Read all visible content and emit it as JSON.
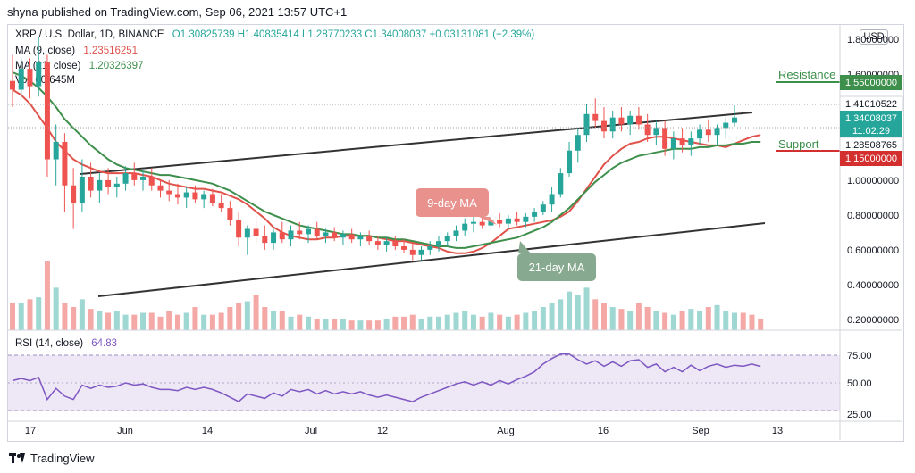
{
  "header": {
    "published": "shyna published on TradingView.com, Sep 06, 2021 13:57 UTC+1"
  },
  "legend": {
    "symbol": "XRP / U.S. Dollar, 1D, BINANCE",
    "ohlc": "O1.30825739  H1.40835414  L1.28770233  C1.34008037  +0.03131081 (+2.39%)",
    "ma9_label": "MA (9, close)",
    "ma9_value": "1.23516251",
    "ma21_label": "MA (21, close)",
    "ma21_value": "1.20326397",
    "vol_label": "Vol",
    "vol_value": "60.645M"
  },
  "currency": "USD",
  "annotations": {
    "resistance": "Resistance",
    "support": "Support",
    "ma9_callout": "9-day MA",
    "ma21_callout": "21-day MA"
  },
  "price_tags": {
    "resistance": "1.55000000",
    "high": "1.41010522",
    "last": "1.34008037",
    "countdown": "11:02:29",
    "low": "1.28508765",
    "support": "1.15000000"
  },
  "rsi": {
    "label": "RSI (14, close)",
    "value": "64.83"
  },
  "footer": {
    "brand": "TradingView"
  },
  "colors": {
    "up": "#26a69a",
    "down": "#ef5350",
    "ma9": "#e0524a",
    "ma21": "#3d8f4b",
    "trend": "#333333",
    "rsi": "#7e57c2",
    "resistance": "#3d8f4b",
    "support": "#d32f2f"
  },
  "chart_data": [
    {
      "type": "candlestick",
      "title": "XRP / U.S. Dollar, 1D, BINANCE",
      "xlabel": "",
      "ylabel": "",
      "ylim": [
        0.1,
        1.9
      ],
      "y_ticks": [
        "1.80000000",
        "1.60000000",
        "1.00000000",
        "0.80000000",
        "0.60000000",
        "0.40000000",
        "0.20000000"
      ],
      "x_ticks": [
        "17",
        "Jun",
        "14",
        "Jul",
        "12",
        "Aug",
        "16",
        "Sep",
        "13"
      ],
      "grid": false,
      "series": [
        {
          "name": "MA (9, close)",
          "values": [
            1.5,
            1.47,
            1.42,
            1.35,
            1.28,
            1.2,
            1.15,
            1.1,
            1.07,
            1.05,
            1.03,
            1.02,
            1.02,
            1.02,
            1.02,
            1.01,
            1.0,
            0.98,
            0.96,
            0.95,
            0.94,
            0.93,
            0.93,
            0.92,
            0.91,
            0.89,
            0.87,
            0.84,
            0.8,
            0.76,
            0.71,
            0.68,
            0.66,
            0.65,
            0.64,
            0.64,
            0.65,
            0.65,
            0.66,
            0.66,
            0.66,
            0.66,
            0.65,
            0.64,
            0.63,
            0.63,
            0.62,
            0.61,
            0.6,
            0.59,
            0.57,
            0.56,
            0.56,
            0.57,
            0.59,
            0.62,
            0.66,
            0.7,
            0.71,
            0.72,
            0.73,
            0.74,
            0.75,
            0.77,
            0.8,
            0.86,
            0.93,
            1.0,
            1.07,
            1.12,
            1.16,
            1.19,
            1.2,
            1.22,
            1.23,
            1.23,
            1.22,
            1.21,
            1.2,
            1.19,
            1.18,
            1.18,
            1.17,
            1.19,
            1.21,
            1.23,
            1.24
          ]
        },
        {
          "name": "MA (21, close)",
          "values": [
            1.6,
            1.58,
            1.55,
            1.51,
            1.46,
            1.4,
            1.33,
            1.28,
            1.23,
            1.18,
            1.14,
            1.1,
            1.07,
            1.05,
            1.04,
            1.03,
            1.02,
            1.01,
            1.01,
            1.0,
            0.99,
            0.98,
            0.97,
            0.96,
            0.94,
            0.92,
            0.89,
            0.86,
            0.83,
            0.8,
            0.78,
            0.76,
            0.74,
            0.72,
            0.71,
            0.7,
            0.69,
            0.68,
            0.67,
            0.67,
            0.66,
            0.66,
            0.65,
            0.65,
            0.64,
            0.64,
            0.63,
            0.62,
            0.61,
            0.6,
            0.6,
            0.59,
            0.59,
            0.6,
            0.61,
            0.62,
            0.63,
            0.64,
            0.65,
            0.67,
            0.69,
            0.71,
            0.74,
            0.78,
            0.82,
            0.87,
            0.92,
            0.97,
            1.01,
            1.05,
            1.08,
            1.1,
            1.12,
            1.13,
            1.14,
            1.15,
            1.16,
            1.16,
            1.16,
            1.17,
            1.17,
            1.18,
            1.18,
            1.19,
            1.19,
            1.2,
            1.2
          ]
        }
      ],
      "candles": [
        {
          "o": 1.55,
          "h": 1.7,
          "l": 1.4,
          "c": 1.5
        },
        {
          "o": 1.5,
          "h": 1.68,
          "l": 1.46,
          "c": 1.62
        },
        {
          "o": 1.62,
          "h": 1.68,
          "l": 1.45,
          "c": 1.52
        },
        {
          "o": 1.52,
          "h": 1.8,
          "l": 1.46,
          "c": 1.66
        },
        {
          "o": 1.66,
          "h": 1.7,
          "l": 1.0,
          "c": 1.1
        },
        {
          "o": 1.1,
          "h": 1.3,
          "l": 0.95,
          "c": 1.2
        },
        {
          "o": 1.2,
          "h": 1.25,
          "l": 0.8,
          "c": 0.95
        },
        {
          "o": 0.95,
          "h": 1.05,
          "l": 0.7,
          "c": 0.85
        },
        {
          "o": 0.85,
          "h": 1.1,
          "l": 0.8,
          "c": 1.0
        },
        {
          "o": 1.0,
          "h": 1.08,
          "l": 0.88,
          "c": 0.92
        },
        {
          "o": 0.92,
          "h": 1.02,
          "l": 0.85,
          "c": 0.98
        },
        {
          "o": 0.98,
          "h": 1.05,
          "l": 0.9,
          "c": 0.94
        },
        {
          "o": 0.94,
          "h": 1.0,
          "l": 0.88,
          "c": 0.96
        },
        {
          "o": 0.96,
          "h": 1.06,
          "l": 0.92,
          "c": 1.02
        },
        {
          "o": 1.02,
          "h": 1.08,
          "l": 0.95,
          "c": 0.98
        },
        {
          "o": 0.98,
          "h": 1.04,
          "l": 0.92,
          "c": 1.0
        },
        {
          "o": 1.0,
          "h": 1.05,
          "l": 0.92,
          "c": 0.95
        },
        {
          "o": 0.95,
          "h": 0.98,
          "l": 0.88,
          "c": 0.92
        },
        {
          "o": 0.92,
          "h": 0.98,
          "l": 0.86,
          "c": 0.9
        },
        {
          "o": 0.9,
          "h": 0.96,
          "l": 0.84,
          "c": 0.88
        },
        {
          "o": 0.88,
          "h": 0.94,
          "l": 0.82,
          "c": 0.91
        },
        {
          "o": 0.91,
          "h": 0.95,
          "l": 0.85,
          "c": 0.87
        },
        {
          "o": 0.87,
          "h": 0.92,
          "l": 0.82,
          "c": 0.9
        },
        {
          "o": 0.9,
          "h": 0.93,
          "l": 0.83,
          "c": 0.85
        },
        {
          "o": 0.85,
          "h": 0.9,
          "l": 0.8,
          "c": 0.82
        },
        {
          "o": 0.82,
          "h": 0.86,
          "l": 0.72,
          "c": 0.75
        },
        {
          "o": 0.75,
          "h": 0.8,
          "l": 0.6,
          "c": 0.65
        },
        {
          "o": 0.65,
          "h": 0.72,
          "l": 0.55,
          "c": 0.7
        },
        {
          "o": 0.7,
          "h": 0.78,
          "l": 0.62,
          "c": 0.66
        },
        {
          "o": 0.66,
          "h": 0.72,
          "l": 0.58,
          "c": 0.62
        },
        {
          "o": 0.62,
          "h": 0.7,
          "l": 0.58,
          "c": 0.68
        },
        {
          "o": 0.68,
          "h": 0.74,
          "l": 0.62,
          "c": 0.64
        },
        {
          "o": 0.64,
          "h": 0.72,
          "l": 0.6,
          "c": 0.69
        },
        {
          "o": 0.69,
          "h": 0.74,
          "l": 0.64,
          "c": 0.67
        },
        {
          "o": 0.67,
          "h": 0.72,
          "l": 0.62,
          "c": 0.7
        },
        {
          "o": 0.7,
          "h": 0.74,
          "l": 0.64,
          "c": 0.66
        },
        {
          "o": 0.66,
          "h": 0.7,
          "l": 0.62,
          "c": 0.68
        },
        {
          "o": 0.68,
          "h": 0.71,
          "l": 0.63,
          "c": 0.65
        },
        {
          "o": 0.65,
          "h": 0.69,
          "l": 0.61,
          "c": 0.67
        },
        {
          "o": 0.67,
          "h": 0.7,
          "l": 0.62,
          "c": 0.64
        },
        {
          "o": 0.64,
          "h": 0.68,
          "l": 0.6,
          "c": 0.66
        },
        {
          "o": 0.66,
          "h": 0.69,
          "l": 0.61,
          "c": 0.63
        },
        {
          "o": 0.63,
          "h": 0.66,
          "l": 0.58,
          "c": 0.61
        },
        {
          "o": 0.61,
          "h": 0.65,
          "l": 0.57,
          "c": 0.63
        },
        {
          "o": 0.63,
          "h": 0.66,
          "l": 0.58,
          "c": 0.6
        },
        {
          "o": 0.6,
          "h": 0.64,
          "l": 0.56,
          "c": 0.58
        },
        {
          "o": 0.58,
          "h": 0.62,
          "l": 0.52,
          "c": 0.55
        },
        {
          "o": 0.55,
          "h": 0.6,
          "l": 0.52,
          "c": 0.58
        },
        {
          "o": 0.58,
          "h": 0.63,
          "l": 0.55,
          "c": 0.6
        },
        {
          "o": 0.6,
          "h": 0.66,
          "l": 0.57,
          "c": 0.63
        },
        {
          "o": 0.63,
          "h": 0.68,
          "l": 0.6,
          "c": 0.66
        },
        {
          "o": 0.66,
          "h": 0.72,
          "l": 0.63,
          "c": 0.69
        },
        {
          "o": 0.69,
          "h": 0.76,
          "l": 0.66,
          "c": 0.73
        },
        {
          "o": 0.73,
          "h": 0.78,
          "l": 0.68,
          "c": 0.74
        },
        {
          "o": 0.74,
          "h": 0.79,
          "l": 0.7,
          "c": 0.72
        },
        {
          "o": 0.72,
          "h": 0.77,
          "l": 0.69,
          "c": 0.75
        },
        {
          "o": 0.75,
          "h": 0.79,
          "l": 0.71,
          "c": 0.73
        },
        {
          "o": 0.73,
          "h": 0.78,
          "l": 0.7,
          "c": 0.76
        },
        {
          "o": 0.76,
          "h": 0.8,
          "l": 0.72,
          "c": 0.74
        },
        {
          "o": 0.74,
          "h": 0.79,
          "l": 0.71,
          "c": 0.77
        },
        {
          "o": 0.77,
          "h": 0.82,
          "l": 0.74,
          "c": 0.8
        },
        {
          "o": 0.8,
          "h": 0.86,
          "l": 0.78,
          "c": 0.84
        },
        {
          "o": 0.84,
          "h": 0.94,
          "l": 0.8,
          "c": 0.9
        },
        {
          "o": 0.9,
          "h": 1.05,
          "l": 0.88,
          "c": 1.02
        },
        {
          "o": 1.02,
          "h": 1.2,
          "l": 1.0,
          "c": 1.15
        },
        {
          "o": 1.15,
          "h": 1.28,
          "l": 1.08,
          "c": 1.24
        },
        {
          "o": 1.24,
          "h": 1.42,
          "l": 1.2,
          "c": 1.36
        },
        {
          "o": 1.36,
          "h": 1.45,
          "l": 1.28,
          "c": 1.32
        },
        {
          "o": 1.32,
          "h": 1.4,
          "l": 1.22,
          "c": 1.26
        },
        {
          "o": 1.26,
          "h": 1.38,
          "l": 1.22,
          "c": 1.34
        },
        {
          "o": 1.34,
          "h": 1.4,
          "l": 1.26,
          "c": 1.3
        },
        {
          "o": 1.3,
          "h": 1.38,
          "l": 1.24,
          "c": 1.35
        },
        {
          "o": 1.35,
          "h": 1.4,
          "l": 1.27,
          "c": 1.3
        },
        {
          "o": 1.3,
          "h": 1.36,
          "l": 1.2,
          "c": 1.24
        },
        {
          "o": 1.24,
          "h": 1.32,
          "l": 1.18,
          "c": 1.28
        },
        {
          "o": 1.28,
          "h": 1.32,
          "l": 1.12,
          "c": 1.16
        },
        {
          "o": 1.16,
          "h": 1.26,
          "l": 1.1,
          "c": 1.22
        },
        {
          "o": 1.22,
          "h": 1.28,
          "l": 1.14,
          "c": 1.18
        },
        {
          "o": 1.18,
          "h": 1.26,
          "l": 1.12,
          "c": 1.22
        },
        {
          "o": 1.22,
          "h": 1.3,
          "l": 1.18,
          "c": 1.27
        },
        {
          "o": 1.27,
          "h": 1.33,
          "l": 1.2,
          "c": 1.24
        },
        {
          "o": 1.24,
          "h": 1.3,
          "l": 1.18,
          "c": 1.28
        },
        {
          "o": 1.28,
          "h": 1.34,
          "l": 1.22,
          "c": 1.31
        },
        {
          "o": 1.31,
          "h": 1.41,
          "l": 1.29,
          "c": 1.34
        }
      ]
    },
    {
      "type": "bar",
      "title": "Vol",
      "values": [
        14,
        14,
        16,
        17,
        36,
        22,
        14,
        12,
        16,
        11,
        10,
        9,
        10,
        8,
        8,
        9,
        9,
        7,
        10,
        8,
        9,
        12,
        8,
        8,
        9,
        12,
        14,
        15,
        18,
        12,
        10,
        10,
        7,
        8,
        7,
        6,
        6,
        6,
        6,
        5,
        5,
        5,
        5,
        6,
        7,
        7,
        8,
        6,
        7,
        7,
        8,
        9,
        10,
        8,
        7,
        9,
        8,
        7,
        8,
        9,
        10,
        12,
        14,
        16,
        20,
        18,
        22,
        16,
        14,
        12,
        11,
        10,
        14,
        12,
        10,
        9,
        8,
        10,
        11,
        10,
        12,
        13,
        10,
        9,
        9,
        8,
        6
      ]
    },
    {
      "type": "line",
      "title": "RSI (14, close)",
      "ylim": [
        20,
        90
      ],
      "y_ticks": [
        "75.00",
        "50.00",
        "25.00"
      ],
      "series": [
        {
          "name": "RSI (14, close)",
          "values": [
            52,
            54,
            52,
            55,
            35,
            45,
            38,
            35,
            48,
            45,
            48,
            46,
            47,
            50,
            48,
            49,
            46,
            44,
            44,
            43,
            46,
            44,
            46,
            44,
            41,
            37,
            33,
            40,
            38,
            36,
            41,
            38,
            44,
            42,
            44,
            40,
            43,
            40,
            42,
            40,
            42,
            39,
            37,
            39,
            37,
            35,
            33,
            37,
            40,
            43,
            46,
            49,
            51,
            48,
            51,
            48,
            52,
            49,
            53,
            56,
            60,
            67,
            72,
            76,
            76,
            71,
            67,
            70,
            65,
            69,
            65,
            70,
            71,
            64,
            67,
            60,
            64,
            60,
            66,
            61,
            65,
            67,
            64,
            66,
            65,
            67,
            64.83
          ]
        }
      ]
    }
  ]
}
